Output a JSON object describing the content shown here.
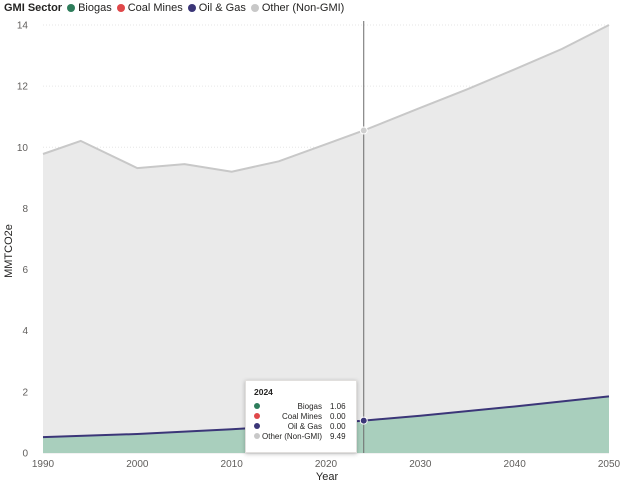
{
  "legend": {
    "title": "GMI Sector",
    "items": [
      {
        "label": "Biogas",
        "color": "#2e7d5b"
      },
      {
        "label": "Coal Mines",
        "color": "#e0484a"
      },
      {
        "label": "Oil & Gas",
        "color": "#3b3678"
      },
      {
        "label": "Other (Non-GMI)",
        "color": "#c8c8c8"
      }
    ]
  },
  "tooltip": {
    "header": "2024",
    "rows": [
      {
        "label": "Biogas",
        "value": "1.06",
        "color": "#2e7d5b"
      },
      {
        "label": "Coal Mines",
        "value": "0.00",
        "color": "#e0484a"
      },
      {
        "label": "Oil & Gas",
        "value": "0.00",
        "color": "#3b3678"
      },
      {
        "label": "Other (Non-GMI)",
        "value": "9.49",
        "color": "#c8c8c8"
      }
    ]
  },
  "chart_data": {
    "type": "area",
    "xlabel": "Year",
    "ylabel": "MMTCO2e",
    "xlim": [
      1990,
      2050
    ],
    "ylim": [
      0,
      14
    ],
    "x_ticks": [
      1990,
      2000,
      2010,
      2020,
      2030,
      2040,
      2050
    ],
    "y_ticks": [
      0,
      2,
      4,
      6,
      8,
      10,
      12,
      14
    ],
    "grid": true,
    "stacked": true,
    "cursor_x": 2024,
    "series": [
      {
        "name": "Biogas",
        "color": "#2e7d5b",
        "fill": "#a9cfbd",
        "x": [
          1990,
          2000,
          2010,
          2020,
          2024,
          2030,
          2040,
          2050
        ],
        "values": [
          0.52,
          0.62,
          0.78,
          0.96,
          1.06,
          1.22,
          1.52,
          1.85
        ]
      },
      {
        "name": "Coal Mines",
        "color": "#e0484a",
        "x": [
          1990,
          2050
        ],
        "values": [
          0,
          0
        ]
      },
      {
        "name": "Oil & Gas",
        "color": "#3b3678",
        "x": [
          1990,
          2050
        ],
        "values": [
          0,
          0
        ]
      },
      {
        "name": "Other (Non-GMI)",
        "color": "#c8c8c8",
        "fill": "#eaeaea",
        "x": [
          1990,
          1994,
          2000,
          2005,
          2010,
          2015,
          2020,
          2024,
          2030,
          2035,
          2040,
          2045,
          2050
        ],
        "values": [
          9.26,
          9.65,
          8.7,
          8.75,
          8.42,
          8.67,
          9.14,
          9.49,
          10.07,
          10.53,
          11.03,
          11.53,
          12.15
        ]
      }
    ]
  }
}
